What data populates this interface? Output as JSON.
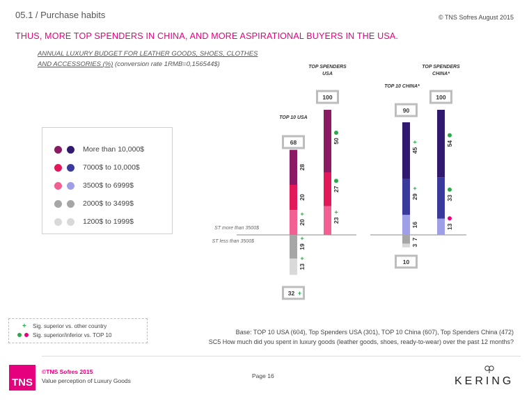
{
  "header": {
    "section": "05.1 / Purchase habits",
    "copyright": "© TNS Sofres August 2015",
    "headline": "THUS, MORE TOP SPENDERS IN CHINA, AND MORE ASPIRATIONAL BUYERS IN THE USA.",
    "subtitle_line1": "ANNUAL LUXURY BUDGET FOR LEATHER GOODS, SHOES, CLOTHES",
    "subtitle_line2_u": "AND ACCESSORIES (%)",
    "subtitle_line2_rest": " (conversion rate 1RMB=0,156544$)"
  },
  "legend": {
    "items": [
      {
        "label": "More than 10,000$",
        "usa_color": "#8a1a63",
        "china_color": "#2f1a6e"
      },
      {
        "label": "7000$ to 10,000$",
        "usa_color": "#e2185b",
        "china_color": "#3a3a9c"
      },
      {
        "label": "3500$ to 6999$",
        "usa_color": "#f15f93",
        "china_color": "#9f9fe8"
      },
      {
        "label": "2000$ to 3499$",
        "usa_color": "#a6a6a6",
        "china_color": "#a6a6a6"
      },
      {
        "label": "1200$ to 1999$",
        "usa_color": "#d9d9d9",
        "china_color": "#d9d9d9"
      }
    ]
  },
  "chart_data": {
    "type": "bar",
    "stacked": "diverging",
    "label_above": "ST more than 3500$",
    "label_below": "ST less than 3500$",
    "groups": [
      {
        "name": "TOP 10 USA",
        "total_above": "68",
        "total_below": "32",
        "total_below_sig": "+",
        "segments": [
          {
            "band": "3500$ to 6999$",
            "value": 20,
            "sig": "+"
          },
          {
            "band": "7000$ to 10,000$",
            "value": 20,
            "sig": ""
          },
          {
            "band": "More than 10,000$",
            "value": 28,
            "sig": ""
          },
          {
            "band": "2000$ to 3499$",
            "value": 19,
            "sig": "+"
          },
          {
            "band": "1200$ to 1999$",
            "value": 13,
            "sig": "+"
          }
        ]
      },
      {
        "name": "TOP SPENDERS USA",
        "total_above": "100",
        "segments": [
          {
            "band": "3500$ to 6999$",
            "value": 23,
            "sig": "+"
          },
          {
            "band": "7000$ to 10,000$",
            "value": 27,
            "sig": "green"
          },
          {
            "band": "More than 10,000$",
            "value": 50,
            "sig": "green"
          }
        ]
      },
      {
        "name": "TOP 10 CHINA*",
        "total_above": "90",
        "total_below": "10",
        "segments": [
          {
            "band": "3500$ to 6999$",
            "value": 16,
            "sig": ""
          },
          {
            "band": "7000$ to 10,000$",
            "value": 29,
            "sig": "+"
          },
          {
            "band": "More than 10,000$",
            "value": 45,
            "sig": "+"
          },
          {
            "band": "2000$ to 3499$",
            "value": 7,
            "sig": ""
          },
          {
            "band": "1200$ to 1999$",
            "value": 3,
            "sig": ""
          }
        ]
      },
      {
        "name": "TOP SPENDERS CHINA*",
        "total_above": "100",
        "segments": [
          {
            "band": "3500$ to 6999$",
            "value": 13,
            "sig": "pink"
          },
          {
            "band": "7000$ to 10,000$",
            "value": 33,
            "sig": "green"
          },
          {
            "band": "More than 10,000$",
            "value": 54,
            "sig": "green"
          }
        ]
      }
    ]
  },
  "key": {
    "row1": "Sig. superior vs. other country",
    "row2": "Sig. superior/inferior vs. TOP 10",
    "plus": "+"
  },
  "notes": {
    "base": "Base: TOP 10 USA (604), Top Spenders USA (301), TOP 10 China (607), Top Spenders China (472)",
    "question": "SC5 How much did you spent in luxury goods (leather goods, shoes, ready-to-wear) over the past 12 months?"
  },
  "footer": {
    "logo": "TNS",
    "copyright": "©TNS Sofres 2015",
    "description": "Value perception of Luxury Goods",
    "page": "Page 16",
    "brand": "KERING"
  }
}
